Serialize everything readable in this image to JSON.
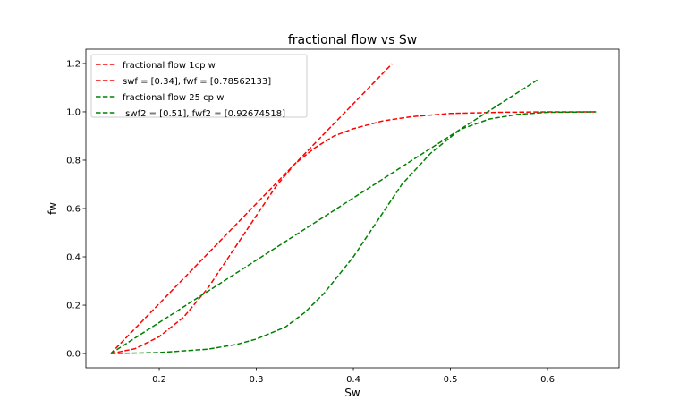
{
  "chart_data": {
    "type": "line",
    "title": "fractional flow vs Sw",
    "xlabel": "Sw",
    "ylabel": "fw",
    "xlim": [
      0.1244,
      0.6737
    ],
    "ylim": [
      -0.059,
      1.259
    ],
    "xticks": [
      0.2,
      0.3,
      0.4,
      0.5,
      0.6
    ],
    "xtick_labels": [
      "0.2",
      "0.3",
      "0.4",
      "0.5",
      "0.6"
    ],
    "yticks": [
      0.0,
      0.2,
      0.4,
      0.6,
      0.8,
      1.0,
      1.2
    ],
    "ytick_labels": [
      "0.0",
      "0.2",
      "0.4",
      "0.6",
      "0.8",
      "1.0",
      "1.2"
    ],
    "grid": false,
    "legend_position": "top-left",
    "series": [
      {
        "name": "fractional flow 1cp w",
        "color": "#ff0000",
        "style": "dashed",
        "x": [
          0.15,
          0.175,
          0.2,
          0.225,
          0.25,
          0.275,
          0.3,
          0.32,
          0.34,
          0.36,
          0.38,
          0.4,
          0.43,
          0.46,
          0.5,
          0.55,
          0.6,
          0.65
        ],
        "y": [
          0,
          0.02,
          0.07,
          0.15,
          0.27,
          0.42,
          0.57,
          0.69,
          0.786,
          0.85,
          0.9,
          0.93,
          0.962,
          0.98,
          0.993,
          0.998,
          1.0,
          1.0
        ]
      },
      {
        "name": "swf = [0.34], fwf = [0.78562133]",
        "color": "#ff0000",
        "style": "dashed",
        "x": [
          0.15,
          0.44
        ],
        "y": [
          0,
          1.199
        ]
      },
      {
        "name": "fractional flow 25 cp w",
        "color": "#008000",
        "style": "dashed",
        "x": [
          0.15,
          0.2,
          0.25,
          0.28,
          0.3,
          0.33,
          0.35,
          0.37,
          0.4,
          0.42,
          0.45,
          0.48,
          0.51,
          0.54,
          0.57,
          0.6,
          0.65
        ],
        "y": [
          0,
          0.004,
          0.018,
          0.038,
          0.06,
          0.11,
          0.17,
          0.25,
          0.4,
          0.52,
          0.7,
          0.83,
          0.927,
          0.97,
          0.99,
          0.998,
          1.0
        ]
      },
      {
        "name": " swf2 = [0.51], fwf2 = [0.92674518]",
        "color": "#008000",
        "style": "dashed",
        "x": [
          0.15,
          0.59
        ],
        "y": [
          0,
          1.133
        ]
      }
    ]
  }
}
